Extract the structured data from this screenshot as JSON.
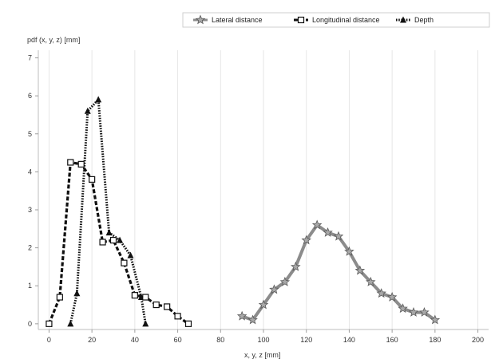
{
  "chart_data": {
    "type": "line",
    "ylabel": "pdf (x, y, z) [mm]",
    "xlabel": "x, y, z [mm]",
    "xlim": [
      -5,
      205
    ],
    "ylim": [
      -0.15,
      7.2
    ],
    "x_ticks": [
      0,
      20,
      40,
      60,
      80,
      100,
      120,
      140,
      160,
      180,
      200
    ],
    "y_ticks": [
      0,
      1,
      2,
      3,
      4,
      5,
      6,
      7
    ],
    "grid": "vertical",
    "legend_position": "top-right",
    "series": [
      {
        "name": "Lateral distance",
        "color": "#8c8c8c",
        "line_style": "solid",
        "marker": "star",
        "x": [
          90,
          95,
          100,
          105,
          110,
          115,
          120,
          125,
          130,
          135,
          140,
          145,
          150,
          155,
          160,
          165,
          170,
          175,
          180
        ],
        "y": [
          0.2,
          0.1,
          0.5,
          0.9,
          1.1,
          1.5,
          2.2,
          2.6,
          2.4,
          2.3,
          1.9,
          1.4,
          1.1,
          0.8,
          0.7,
          0.4,
          0.3,
          0.3,
          0.1
        ]
      },
      {
        "name": "Longitudinal distance",
        "color": "#111111",
        "line_style": "dashed",
        "marker": "square",
        "x": [
          0,
          5,
          10,
          15,
          20,
          25,
          30,
          35,
          40,
          45,
          50,
          55,
          60,
          65
        ],
        "y": [
          0.0,
          0.7,
          4.25,
          4.2,
          3.8,
          2.15,
          2.2,
          1.6,
          0.75,
          0.7,
          0.5,
          0.45,
          0.2,
          0.0
        ]
      },
      {
        "name": "Depth",
        "color": "#111111",
        "line_style": "dotted",
        "marker": "triangle",
        "x": [
          10,
          13,
          18,
          23,
          28,
          33,
          38,
          43,
          45
        ],
        "y": [
          0.0,
          0.8,
          5.6,
          5.9,
          2.4,
          2.2,
          1.8,
          0.7,
          0.0
        ]
      }
    ]
  }
}
